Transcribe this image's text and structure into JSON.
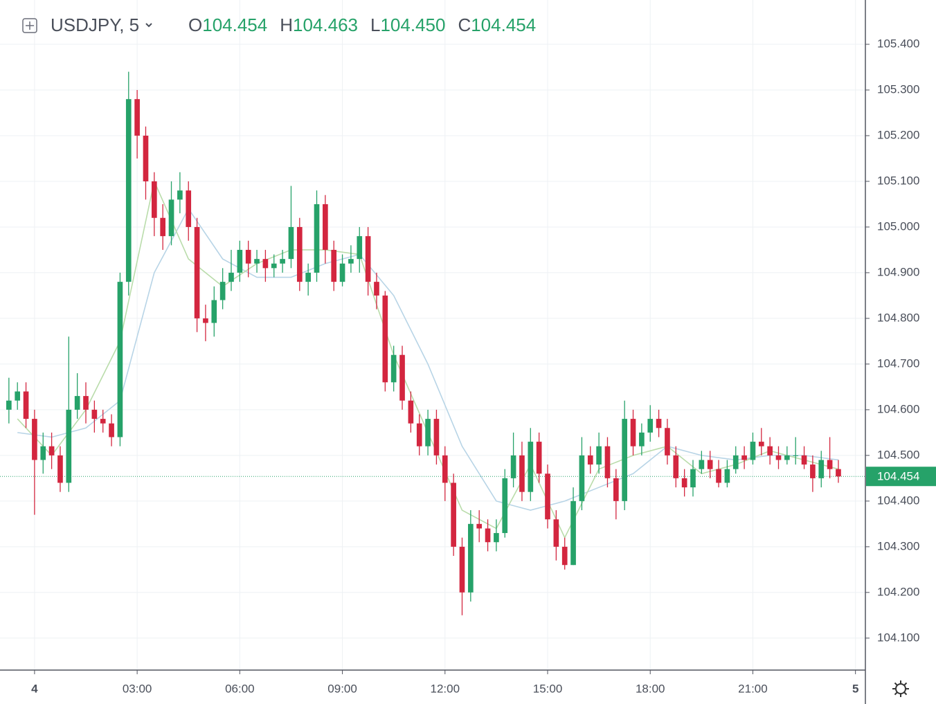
{
  "chart_data": {
    "type": "candlestick",
    "title": "USDJPY, 5",
    "ohlc": [
      {
        "key": "O",
        "value": 104.454,
        "label": "104.454"
      },
      {
        "key": "H",
        "value": 104.463,
        "label": "104.463"
      },
      {
        "key": "L",
        "value": 104.45,
        "label": "104.450"
      },
      {
        "key": "C",
        "value": 104.454,
        "label": "104.454"
      }
    ],
    "up_color": "#26a269",
    "down_color": "#d3263f",
    "grid": true,
    "xlim": [
      -1.01,
      24.29
    ],
    "ylim": [
      104.03,
      105.497
    ],
    "xticks": [
      {
        "value": 0,
        "label": "4"
      },
      {
        "value": 3,
        "label": "03:00"
      },
      {
        "value": 6,
        "label": "06:00"
      },
      {
        "value": 9,
        "label": "09:00"
      },
      {
        "value": 12,
        "label": "12:00"
      },
      {
        "value": 15,
        "label": "15:00"
      },
      {
        "value": 18,
        "label": "18:00"
      },
      {
        "value": 21,
        "label": "21:00"
      },
      {
        "value": 24,
        "label": "5"
      }
    ],
    "yticks": [
      {
        "value": 104.1,
        "label": "104.100"
      },
      {
        "value": 104.2,
        "label": "104.200"
      },
      {
        "value": 104.3,
        "label": "104.300"
      },
      {
        "value": 104.4,
        "label": "104.400"
      },
      {
        "value": 104.5,
        "label": "104.500"
      },
      {
        "value": 104.6,
        "label": "104.600"
      },
      {
        "value": 104.7,
        "label": "104.700"
      },
      {
        "value": 104.8,
        "label": "104.800"
      },
      {
        "value": 104.9,
        "label": "104.900"
      },
      {
        "value": 105,
        "label": "105.000"
      },
      {
        "value": 105.1,
        "label": "105.100"
      },
      {
        "value": 105.2,
        "label": "105.200"
      },
      {
        "value": 105.3,
        "label": "105.300"
      },
      {
        "value": 105.4,
        "label": "105.400"
      }
    ],
    "last_price": {
      "value": 104.454,
      "label": "104.454",
      "color": "#26a269"
    },
    "candles": {
      "x": [
        -0.75,
        -0.5,
        -0.25,
        0,
        0.25,
        0.5,
        0.75,
        1,
        1.25,
        1.5,
        1.75,
        2,
        2.25,
        2.5,
        2.75,
        3,
        3.25,
        3.5,
        3.75,
        4,
        4.25,
        4.5,
        4.75,
        5,
        5.25,
        5.5,
        5.75,
        6,
        6.25,
        6.5,
        6.75,
        7,
        7.25,
        7.5,
        7.75,
        8,
        8.25,
        8.5,
        8.75,
        9,
        9.25,
        9.5,
        9.75,
        10,
        10.25,
        10.5,
        10.75,
        11,
        11.25,
        11.5,
        11.75,
        12,
        12.25,
        12.5,
        12.75,
        13,
        13.25,
        13.5,
        13.75,
        14,
        14.25,
        14.5,
        14.75,
        15,
        15.25,
        15.5,
        15.75,
        16,
        16.25,
        16.5,
        16.75,
        17,
        17.25,
        17.5,
        17.75,
        18,
        18.25,
        18.5,
        18.75,
        19,
        19.25,
        19.5,
        19.75,
        20,
        20.25,
        20.5,
        20.75,
        21,
        21.25,
        21.5,
        21.75,
        22,
        22.25,
        22.5,
        22.75,
        23,
        23.25,
        23.5
      ],
      "open": [
        104.6,
        104.62,
        104.64,
        104.58,
        104.49,
        104.52,
        104.5,
        104.44,
        104.6,
        104.63,
        104.6,
        104.58,
        104.57,
        104.54,
        104.88,
        105.28,
        105.2,
        105.1,
        105.02,
        104.98,
        105.06,
        105.08,
        105.0,
        104.8,
        104.79,
        104.84,
        104.88,
        104.9,
        104.95,
        104.92,
        104.93,
        104.91,
        104.92,
        104.93,
        105.0,
        104.88,
        104.9,
        105.05,
        104.95,
        104.88,
        104.92,
        104.93,
        104.98,
        104.88,
        104.85,
        104.66,
        104.72,
        104.62,
        104.57,
        104.52,
        104.58,
        104.5,
        104.44,
        104.3,
        104.2,
        104.35,
        104.34,
        104.31,
        104.33,
        104.45,
        104.5,
        104.42,
        104.53,
        104.46,
        104.36,
        104.3,
        104.26,
        104.4,
        104.5,
        104.48,
        104.52,
        104.45,
        104.4,
        104.58,
        104.52,
        104.55,
        104.58,
        104.56,
        104.5,
        104.45,
        104.43,
        104.47,
        104.49,
        104.47,
        104.44,
        104.47,
        104.5,
        104.49,
        104.53,
        104.52,
        104.5,
        104.49,
        104.5,
        104.5,
        104.48,
        104.45,
        104.49,
        104.47
      ],
      "high": [
        104.67,
        104.66,
        104.66,
        104.6,
        104.55,
        104.55,
        104.52,
        104.76,
        104.68,
        104.66,
        104.62,
        104.6,
        104.59,
        104.9,
        105.34,
        105.3,
        105.22,
        105.12,
        105.05,
        105.1,
        105.12,
        105.1,
        105.02,
        104.83,
        104.87,
        104.91,
        104.95,
        104.97,
        104.97,
        104.95,
        104.95,
        104.94,
        104.95,
        105.09,
        105.02,
        104.92,
        105.08,
        105.07,
        104.97,
        104.94,
        104.96,
        105.0,
        105.0,
        104.9,
        104.86,
        104.74,
        104.74,
        104.64,
        104.59,
        104.6,
        104.6,
        104.52,
        104.46,
        104.32,
        104.38,
        104.38,
        104.36,
        104.36,
        104.47,
        104.55,
        104.53,
        104.56,
        104.55,
        104.48,
        104.38,
        104.32,
        104.43,
        104.54,
        104.52,
        104.55,
        104.54,
        104.47,
        104.62,
        104.6,
        104.57,
        104.61,
        104.6,
        104.58,
        104.52,
        104.47,
        104.49,
        104.51,
        104.51,
        104.49,
        104.49,
        104.52,
        104.52,
        104.55,
        104.56,
        104.54,
        104.52,
        104.52,
        104.54,
        104.52,
        104.5,
        104.51,
        104.54,
        104.49
      ],
      "low": [
        104.57,
        104.6,
        104.56,
        104.37,
        104.46,
        104.47,
        104.42,
        104.42,
        104.58,
        104.57,
        104.55,
        104.55,
        104.52,
        104.52,
        104.85,
        105.15,
        105.06,
        104.98,
        104.95,
        104.96,
        105.03,
        104.97,
        104.77,
        104.75,
        104.76,
        104.82,
        104.86,
        104.88,
        104.89,
        104.9,
        104.88,
        104.89,
        104.9,
        104.91,
        104.86,
        104.85,
        104.88,
        104.92,
        104.86,
        104.87,
        104.9,
        104.9,
        104.85,
        104.82,
        104.64,
        104.64,
        104.6,
        104.55,
        104.5,
        104.5,
        104.48,
        104.4,
        104.28,
        104.15,
        104.18,
        104.31,
        104.29,
        104.29,
        104.32,
        104.43,
        104.4,
        104.4,
        104.44,
        104.34,
        104.27,
        104.25,
        104.26,
        104.38,
        104.46,
        104.46,
        104.43,
        104.36,
        104.38,
        104.5,
        104.5,
        104.53,
        104.54,
        104.48,
        104.43,
        104.41,
        104.41,
        104.46,
        104.45,
        104.43,
        104.43,
        104.46,
        104.47,
        104.48,
        104.5,
        104.48,
        104.47,
        104.48,
        104.48,
        104.47,
        104.42,
        104.43,
        104.45,
        104.44
      ],
      "close": [
        104.62,
        104.64,
        104.58,
        104.49,
        104.52,
        104.5,
        104.44,
        104.6,
        104.63,
        104.6,
        104.58,
        104.57,
        104.54,
        104.88,
        105.28,
        105.2,
        105.1,
        105.02,
        104.98,
        105.06,
        105.08,
        105.0,
        104.8,
        104.79,
        104.84,
        104.88,
        104.9,
        104.95,
        104.92,
        104.93,
        104.91,
        104.92,
        104.93,
        105.0,
        104.88,
        104.9,
        105.05,
        104.95,
        104.88,
        104.92,
        104.93,
        104.98,
        104.88,
        104.85,
        104.66,
        104.72,
        104.62,
        104.57,
        104.52,
        104.58,
        104.5,
        104.44,
        104.3,
        104.2,
        104.35,
        104.34,
        104.31,
        104.33,
        104.45,
        104.5,
        104.42,
        104.53,
        104.46,
        104.36,
        104.3,
        104.26,
        104.4,
        104.5,
        104.48,
        104.52,
        104.45,
        104.4,
        104.58,
        104.52,
        104.55,
        104.58,
        104.56,
        104.5,
        104.45,
        104.43,
        104.47,
        104.49,
        104.47,
        104.44,
        104.47,
        104.5,
        104.49,
        104.53,
        104.52,
        104.5,
        104.49,
        104.5,
        104.5,
        104.48,
        104.45,
        104.49,
        104.47,
        104.454
      ]
    },
    "lines": [
      {
        "color": "#b7d4e6",
        "x": [
          -0.5,
          0.5,
          1.5,
          2.5,
          3.5,
          4.5,
          5.5,
          6.5,
          7.5,
          8.5,
          9.5,
          10.5,
          11.5,
          12.5,
          13.5,
          14.5,
          15.5,
          16.5,
          17.5,
          18.5,
          19.5,
          20.5,
          21.5,
          22.5,
          23.5
        ],
        "values": [
          104.55,
          104.54,
          104.56,
          104.62,
          104.9,
          105.04,
          104.93,
          104.89,
          104.89,
          104.92,
          104.94,
          104.85,
          104.7,
          104.52,
          104.4,
          104.38,
          104.4,
          104.43,
          104.46,
          104.52,
          104.5,
          104.49,
          104.5,
          104.5,
          104.49
        ]
      },
      {
        "color": "#b9dcaa",
        "x": [
          -0.5,
          0.5,
          1.5,
          2.5,
          3.5,
          4.5,
          5.5,
          6.5,
          7.5,
          8.5,
          9.5,
          10.5,
          11.5,
          12.5,
          13.5,
          14.5,
          15.5,
          16.5,
          17.5,
          18.5,
          19.5,
          20.5,
          21.5,
          22.5,
          23.5
        ],
        "values": [
          104.58,
          104.5,
          104.6,
          104.75,
          105.1,
          104.93,
          104.87,
          104.92,
          104.95,
          104.95,
          104.94,
          104.72,
          104.55,
          104.38,
          104.34,
          104.48,
          104.32,
          104.47,
          104.5,
          104.52,
          104.46,
          104.48,
          104.51,
          104.49,
          104.47
        ]
      }
    ]
  }
}
